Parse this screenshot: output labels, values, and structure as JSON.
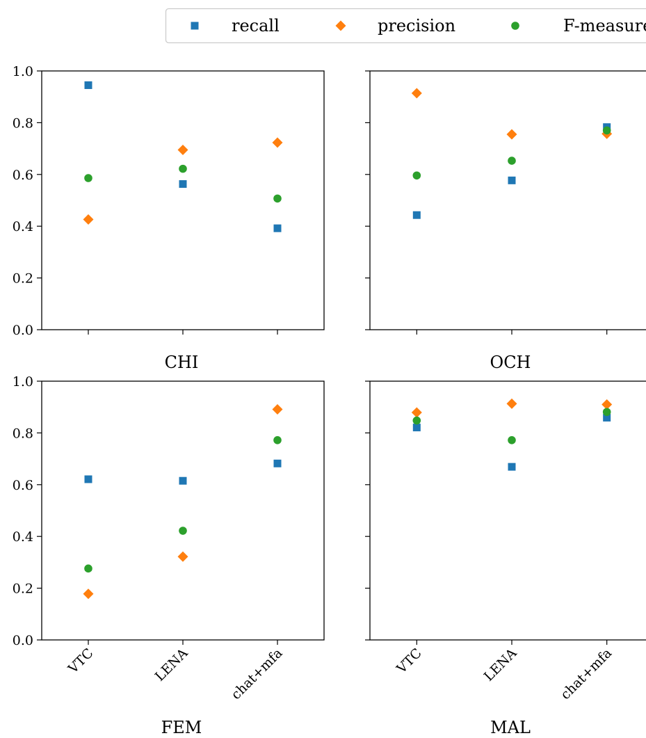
{
  "chart_data": {
    "type": "scatter",
    "categories": [
      "VTC",
      "LENA",
      "chat+mfa"
    ],
    "ylim": [
      0.0,
      1.0
    ],
    "yticks": [
      "0.0",
      "0.2",
      "0.4",
      "0.6",
      "0.8",
      "1.0"
    ],
    "grid": false,
    "legend": {
      "placement": "top-right",
      "entries": [
        {
          "name": "recall",
          "color": "#1f77b4",
          "marker": "square"
        },
        {
          "name": "precision",
          "color": "#ff7f0e",
          "marker": "diamond"
        },
        {
          "name": "F-measure",
          "color": "#2ca02c",
          "marker": "circle"
        }
      ]
    },
    "panels": [
      {
        "title": "CHI",
        "series": [
          {
            "name": "recall",
            "values": [
              0.945,
              0.563,
              0.392
            ]
          },
          {
            "name": "precision",
            "values": [
              0.426,
              0.695,
              0.723
            ]
          },
          {
            "name": "F-measure",
            "values": [
              0.586,
              0.622,
              0.507
            ]
          }
        ]
      },
      {
        "title": "OCH",
        "series": [
          {
            "name": "recall",
            "values": [
              0.443,
              0.577,
              0.783
            ]
          },
          {
            "name": "precision",
            "values": [
              0.914,
              0.755,
              0.757
            ]
          },
          {
            "name": "F-measure",
            "values": [
              0.596,
              0.653,
              0.77
            ]
          }
        ]
      },
      {
        "title": "FEM",
        "series": [
          {
            "name": "recall",
            "values": [
              0.621,
              0.615,
              0.682
            ]
          },
          {
            "name": "precision",
            "values": [
              0.178,
              0.322,
              0.891
            ]
          },
          {
            "name": "F-measure",
            "values": [
              0.276,
              0.422,
              0.772
            ]
          }
        ]
      },
      {
        "title": "MAL",
        "series": [
          {
            "name": "recall",
            "values": [
              0.821,
              0.669,
              0.859
            ]
          },
          {
            "name": "precision",
            "values": [
              0.879,
              0.913,
              0.91
            ]
          },
          {
            "name": "F-measure",
            "values": [
              0.848,
              0.772,
              0.881
            ]
          }
        ]
      }
    ]
  }
}
